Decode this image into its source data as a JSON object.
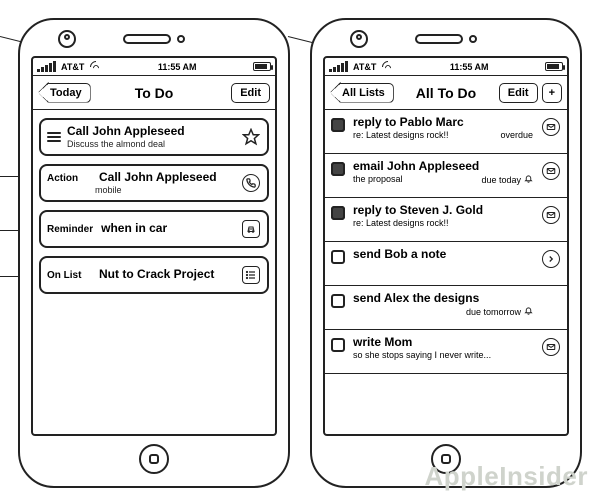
{
  "status": {
    "carrier": "AT&T",
    "time": "11:55 AM"
  },
  "left": {
    "back": "Today",
    "title": "To Do",
    "edit": "Edit",
    "task": {
      "title": "Call John Appleseed",
      "sub": "Discuss the almond deal"
    },
    "action": {
      "label": "Action",
      "title": "Call John Appleseed",
      "sub": "mobile"
    },
    "reminder": {
      "label": "Reminder",
      "title": "when in car"
    },
    "list": {
      "label": "On List",
      "title": "Nut to Crack Project"
    }
  },
  "right": {
    "back": "All Lists",
    "title": "All To Do",
    "edit": "Edit",
    "plus": "+",
    "items": [
      {
        "checked": true,
        "title": "reply to Pablo Marc",
        "sub": "re: Latest designs rock!!",
        "due": "overdue",
        "icon": "mail",
        "bell": false
      },
      {
        "checked": true,
        "title": "email John Appleseed",
        "sub": "the proposal",
        "due": "due today",
        "icon": "mail",
        "bell": true
      },
      {
        "checked": true,
        "title": "reply to Steven J. Gold",
        "sub": "re: Latest designs rock!!",
        "due": "",
        "icon": "mail",
        "bell": false
      },
      {
        "checked": false,
        "title": "send Bob a note",
        "sub": "",
        "due": "",
        "icon": "arrow",
        "bell": false
      },
      {
        "checked": false,
        "title": "send Alex the designs",
        "sub": "",
        "due": "due tomorrow",
        "icon": "none",
        "bell": true
      },
      {
        "checked": false,
        "title": "write Mom",
        "sub": "so she stops saying I never write...",
        "due": "",
        "icon": "mail",
        "bell": false
      }
    ]
  },
  "watermark": "AppleInsider"
}
